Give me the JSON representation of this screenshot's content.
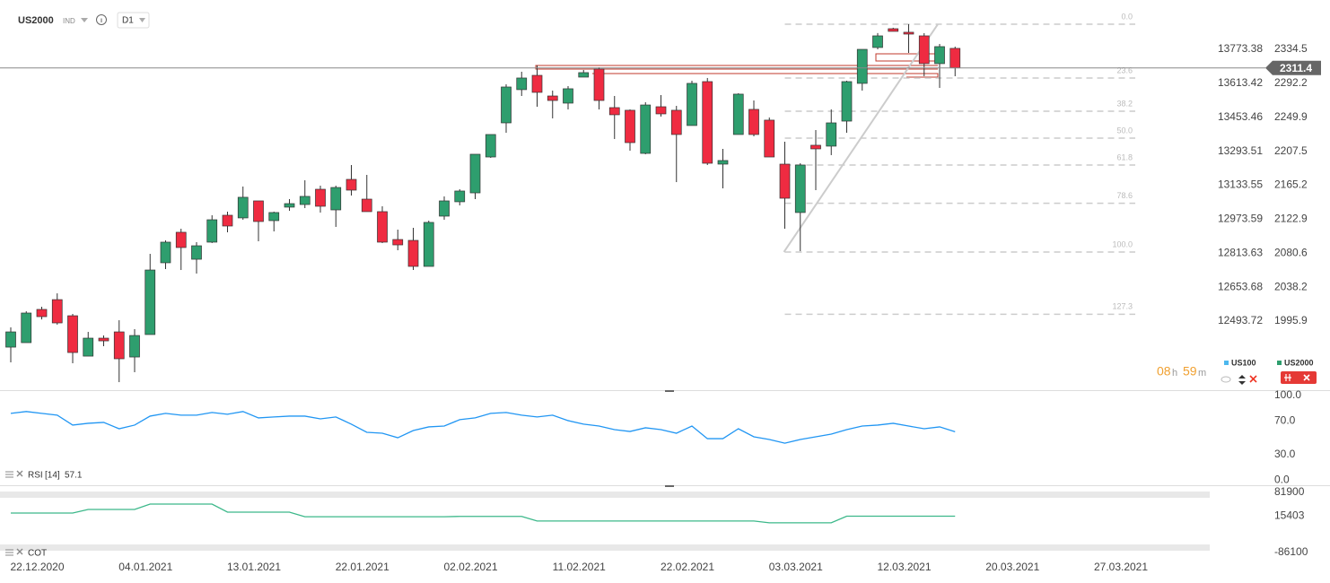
{
  "toolbar": {
    "symbol": "US2000",
    "market": "IND",
    "timeframe": "D1"
  },
  "countdown": {
    "hours": "08",
    "hours_unit": "h",
    "minutes": "59",
    "minutes_unit": "m"
  },
  "chart_data": [
    {
      "type": "candlestick",
      "categories": [
        null,
        null,
        "22.12.2020",
        null,
        null,
        null,
        null,
        null,
        null,
        "04.01.2021",
        null,
        null,
        null,
        null,
        null,
        null,
        "13.01.2021",
        null,
        null,
        null,
        null,
        null,
        null,
        "22.01.2021",
        null,
        null,
        null,
        null,
        null,
        null,
        "02.02.2021",
        null,
        null,
        null,
        null,
        null,
        null,
        "11.02.2021",
        null,
        null,
        null,
        null,
        null,
        null,
        "22.02.2021",
        null,
        null,
        null,
        null,
        null,
        null,
        "03.03.2021",
        null,
        null,
        null,
        null,
        null,
        null,
        "12.03.2021",
        null,
        null,
        null,
        null,
        null,
        null,
        "20.03.2021",
        null,
        null,
        null,
        null,
        null,
        null,
        "27.03.2021",
        null,
        null,
        null,
        null,
        null
      ],
      "series": [
        {
          "name": "US2000",
          "up_color": "#2e9e6e",
          "down_color": "#ef2b41",
          "color": "#2e9e6e",
          "open": [
            1963.5,
            1969.1,
            2010.5,
            2022.7,
            2002.6,
            1952.3,
            1974.7,
            1982.5,
            1951.2,
            1979.2,
            2068.6,
            2106.6,
            2073.0,
            2094.3,
            2127.8,
            2124.5,
            2145.7,
            2121.1,
            2137.9,
            2141.2,
            2160.2,
            2134.5,
            2172.5,
            2147.9,
            2132.3,
            2097.6,
            2096.5,
            2064.1,
            2126.7,
            2144.6,
            2155.7,
            2200.4,
            2242.9,
            2284.3,
            2302.1,
            2276.4,
            2267.5,
            2299.9,
            2310.0,
            2261.9,
            2258.6,
            2204.9,
            2263.0,
            2258.6,
            2239.6,
            2294.3,
            2191.5,
            2228.4,
            2259.7,
            2246.3,
            2191.5,
            2131.2,
            2215.0,
            2213.9,
            2245.1,
            2292.1,
            2336.8,
            2360.2,
            2355.8,
            2351.3,
            2316.7,
            2335.7,
            null,
            null,
            null,
            null,
            null,
            null,
            null,
            null,
            null,
            null,
            null,
            null,
            null,
            null,
            null,
            null
          ],
          "high": [
            1988.1,
            2008.2,
            2013.8,
            2030.5,
            2004.9,
            1982.5,
            1978.0,
            1997.0,
            1985.9,
            2079.7,
            2096.5,
            2111.0,
            2094.3,
            2127.8,
            2132.3,
            2163.6,
            2145.7,
            2132.3,
            2147.9,
            2171.4,
            2164.7,
            2164.7,
            2190.4,
            2178.1,
            2139.0,
            2109.9,
            2112.2,
            2121.1,
            2151.3,
            2160.2,
            2203.8,
            2228.4,
            2291.0,
            2306.6,
            2314.4,
            2283.1,
            2288.7,
            2308.8,
            2312.2,
            2276.4,
            2259.7,
            2268.6,
            2277.5,
            2264.1,
            2295.4,
            2298.8,
            2210.5,
            2279.8,
            2270.8,
            2249.6,
            2219.4,
            2192.6,
            2234.0,
            2259.7,
            2295.4,
            2334.5,
            2354.7,
            2361.4,
            2365.8,
            2354.7,
            2341.2,
            2337.9,
            null,
            null,
            null,
            null,
            null,
            null,
            null,
            null,
            null,
            null,
            null,
            null,
            null,
            null,
            null,
            null
          ],
          "low": [
            1944.5,
            1969.1,
            1998.1,
            1991.5,
            1943.4,
            1952.3,
            1964.6,
            1919.9,
            1932.2,
            1979.2,
            2060.7,
            2059.6,
            2055.2,
            2093.2,
            2106.6,
            2122.2,
            2095.4,
            2107.7,
            2133.4,
            2136.7,
            2131.2,
            2113.3,
            2152.4,
            2132.3,
            2093.2,
            2084.2,
            2059.6,
            2064.1,
            2122.2,
            2140.1,
            2147.9,
            2199.3,
            2230.6,
            2276.4,
            2263.0,
            2248.5,
            2259.7,
            2299.9,
            2259.7,
            2222.8,
            2208.3,
            2203.8,
            2250.7,
            2169.1,
            2239.6,
            2190.4,
            2161.3,
            2228.4,
            2226.1,
            2200.4,
            2111.0,
            2083.1,
            2159.1,
            2202.7,
            2230.6,
            2283.1,
            2334.5,
            2356.9,
            2330.1,
            2301.0,
            2286.5,
            2301.0,
            null,
            null,
            null,
            null,
            null,
            null,
            null,
            null,
            null,
            null,
            null,
            null,
            null,
            null,
            null,
            null
          ],
          "close": [
            1982.5,
            2006.0,
            2001.5,
            1993.7,
            1956.8,
            1974.7,
            1971.3,
            1949.0,
            1978.0,
            2059.6,
            2094.3,
            2087.6,
            2089.8,
            2122.2,
            2114.4,
            2150.2,
            2120.0,
            2131.2,
            2142.3,
            2151.3,
            2139.0,
            2162.4,
            2159.1,
            2132.3,
            2094.3,
            2090.9,
            2064.1,
            2118.9,
            2145.7,
            2158.0,
            2203.8,
            2228.4,
            2287.6,
            2298.8,
            2280.9,
            2270.8,
            2285.4,
            2305.5,
            2270.8,
            2253.0,
            2218.3,
            2265.2,
            2254.1,
            2228.4,
            2292.1,
            2192.6,
            2196.0,
            2278.7,
            2228.4,
            2200.4,
            2149.0,
            2190.4,
            2210.5,
            2242.9,
            2294.3,
            2334.5,
            2351.3,
            2356.9,
            2353.5,
            2316.7,
            2337.9,
            2311.4,
            null,
            null,
            null,
            null,
            null,
            null,
            null,
            null,
            null,
            null,
            null,
            null,
            null,
            null,
            null,
            null
          ]
        },
        {
          "name": "US100",
          "color": "#4db8ee",
          "axis": "y2"
        }
      ],
      "ylim": [
        1909.9,
        2384.8
      ],
      "yticks": [
        1995.9,
        2038.2,
        2080.6,
        2122.9,
        2165.2,
        2207.5,
        2249.9,
        2292.2,
        2334.5
      ],
      "y2lim": [
        12168.5,
        13963.4
      ],
      "y2ticks": [
        12493.72,
        12653.68,
        12813.63,
        12973.59,
        13133.55,
        13293.51,
        13453.46,
        13613.42,
        13773.38
      ],
      "grid": false,
      "fibonacci": {
        "high": 2365.8,
        "low": 2082.0,
        "levels": [
          {
            "value": 0,
            "label": "0.0"
          },
          23.6,
          38.2,
          {
            "value": 50,
            "label": "50.0"
          },
          61.8,
          78.6,
          {
            "value": 100,
            "label": "100.0"
          },
          127.3
        ]
      }
    },
    {
      "type": "line",
      "title": "RSI",
      "parameters": "[14]",
      "color": "#2196f3",
      "values": [
        78.7,
        80.9,
        78.7,
        76.6,
        64.9,
        67.0,
        68.1,
        60.6,
        64.9,
        75.5,
        78.7,
        76.6,
        76.6,
        79.8,
        77.7,
        80.9,
        73.4,
        74.5,
        75.5,
        75.5,
        72.3,
        74.5,
        66.0,
        56.4,
        55.3,
        50.0,
        58.5,
        62.8,
        63.8,
        71.3,
        73.4,
        78.7,
        79.8,
        76.6,
        74.5,
        76.6,
        70.2,
        66.0,
        63.8,
        59.6,
        57.4,
        61.7,
        59.6,
        55.3,
        63.8,
        48.9,
        48.9,
        60.6,
        51.1,
        47.9,
        43.6,
        47.9,
        51.1,
        54.3,
        59.6,
        63.8,
        64.9,
        67.0,
        63.8,
        60.6,
        62.8,
        57.1,
        null,
        null,
        null,
        null,
        null,
        null,
        null,
        null,
        null,
        null,
        null,
        null,
        null,
        null,
        null,
        null
      ],
      "ylim": [
        -5,
        104
      ],
      "yticks": [
        {
          "value": 100,
          "label": "100.0"
        },
        {
          "value": 70,
          "label": "70.0"
        },
        {
          "value": 30,
          "label": "30.0"
        },
        {
          "value": 0,
          "label": "0.0"
        }
      ]
    },
    {
      "type": "line",
      "title": "COT",
      "color": "#3cb88a",
      "values": [
        24239,
        24239,
        24239,
        24239,
        24239,
        34267,
        34267,
        34267,
        34267,
        49309,
        49309,
        49309,
        49309,
        49309,
        26746,
        26746,
        26746,
        26746,
        26746,
        13900,
        13900,
        13900,
        13900,
        13900,
        13900,
        13900,
        13900,
        13900,
        13900,
        14900,
        14900,
        14900,
        14900,
        14900,
        2000,
        2000,
        2000,
        2000,
        2000,
        2000,
        2000,
        2000,
        2000,
        2000,
        2000,
        2000,
        2000,
        2000,
        2000,
        -3000,
        -3000,
        -3000,
        -3000,
        -3000,
        15403,
        15403,
        15403,
        15403,
        15403,
        15403,
        15403,
        15403,
        null,
        null,
        null,
        null,
        null,
        null,
        null,
        null,
        null,
        null,
        null,
        null,
        null,
        null,
        null,
        null
      ],
      "ylim": [
        -86100,
        81900
      ],
      "yticks": [
        81900,
        15403,
        -86100
      ]
    }
  ]
}
